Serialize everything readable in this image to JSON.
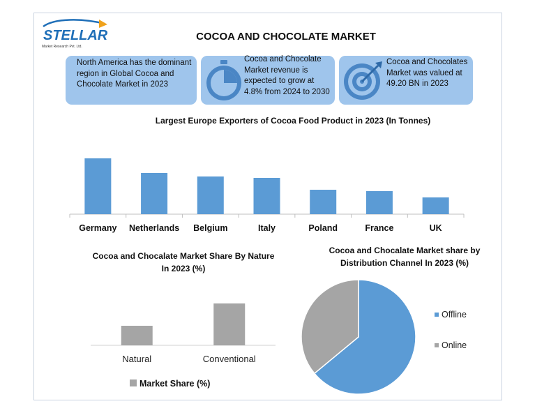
{
  "header": {
    "title": "COCOA AND CHOCOLATE MARKET",
    "logo_text": "STELLAR",
    "logo_subtext": "Market Research Pvt. Ltd."
  },
  "info_boxes": [
    {
      "icon": "globe-region",
      "text": "North America has the dominant region in Global Cocoa and Chocolate Market in 2023"
    },
    {
      "icon": "stopwatch-icon",
      "text": "Cocoa and Chocolate Market revenue is expected to grow at 4.8% from 2024 to 2030"
    },
    {
      "icon": "target-icon",
      "text": "Cocoa and Chocolates Market was valued at 49.20 BN in 2023"
    }
  ],
  "colors": {
    "bar_blue": "#5b9bd5",
    "bar_gray": "#a5a5a5",
    "box_bg": "#9fc5ec",
    "icon_blue": "#4a86c5"
  },
  "chart_data": [
    {
      "type": "bar",
      "title": "Largest Europe Exporters of Cocoa Food Product in 2023 (In Tonnes)",
      "categories": [
        "Germany",
        "Netherlands",
        "Belgium",
        "Italy",
        "Poland",
        "France",
        "UK"
      ],
      "values": [
        80,
        59,
        54,
        52,
        35,
        33,
        24
      ],
      "ylim": [
        0,
        100
      ],
      "grid": false,
      "legend": "none"
    },
    {
      "type": "bar",
      "title": "Cocoa and Chocalate Market Share By Nature In 2023 (%)",
      "categories": [
        "Natural",
        "Conventional"
      ],
      "series": [
        {
          "name": "Market Share (%)",
          "values": [
            28,
            60
          ]
        }
      ],
      "ylim": [
        0,
        100
      ],
      "grid": false,
      "legend": "bottom"
    },
    {
      "type": "pie",
      "title": "Cocoa and Chocalate Market share by Distribution Channel In 2023 (%)",
      "labels": [
        "Offline",
        "Online"
      ],
      "values": [
        64,
        36
      ],
      "colors": [
        "#5b9bd5",
        "#a5a5a5"
      ],
      "legend": "right"
    }
  ]
}
